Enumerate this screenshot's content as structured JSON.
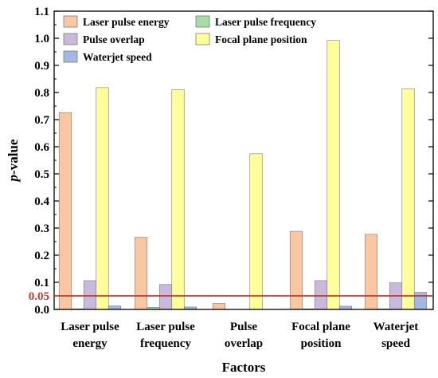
{
  "chart_data": {
    "type": "bar",
    "xlabel": "Factors",
    "ylabel_prefix": "p",
    "ylabel_suffix": "-value",
    "ylim": [
      0,
      1.1
    ],
    "yticks": [
      "0.0",
      "0.1",
      "0.2",
      "0.3",
      "0.4",
      "0.5",
      "0.6",
      "0.7",
      "0.8",
      "0.9",
      "1.0",
      "1.1"
    ],
    "categories": [
      [
        "Laser pulse",
        "energy"
      ],
      [
        "Laser pulse",
        "frequency"
      ],
      [
        "Pulse",
        "overlap"
      ],
      [
        "Focal plane",
        "position"
      ],
      [
        "Waterjet",
        "speed"
      ]
    ],
    "series": [
      {
        "name": "Laser pulse energy",
        "color": "#f9c8a3",
        "values": [
          0.726,
          0.266,
          0.022,
          0.288,
          0.277
        ]
      },
      {
        "name": "Laser pulse frequency",
        "color": "#a6dca6",
        "values": [
          0.002,
          0.008,
          0.0,
          0.002,
          0.002
        ]
      },
      {
        "name": "Pulse overlap",
        "color": "#c9b9dc",
        "values": [
          0.106,
          0.092,
          0.0,
          0.106,
          0.098
        ]
      },
      {
        "name": "Focal plane position",
        "color": "#ffff99",
        "values": [
          0.818,
          0.811,
          0.574,
          0.992,
          0.814
        ]
      },
      {
        "name": "Waterjet speed",
        "color": "#a3b8e6",
        "values": [
          0.013,
          0.009,
          0.0,
          0.012,
          0.063
        ]
      }
    ],
    "threshold": {
      "value": 0.05,
      "label": "0.05",
      "color": "#c0392b"
    },
    "legend": "top-left, two columns"
  }
}
